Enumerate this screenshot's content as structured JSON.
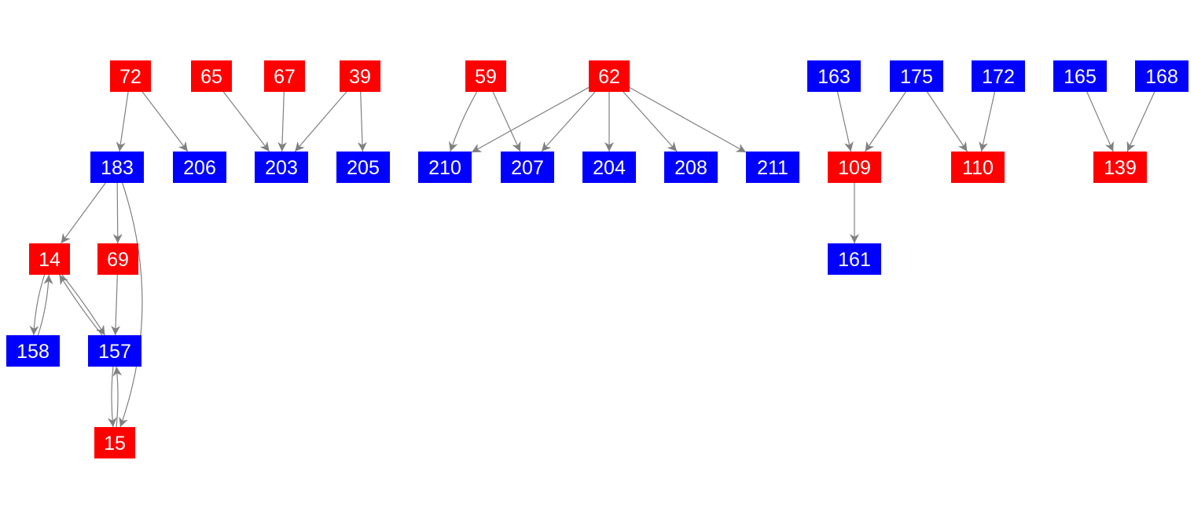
{
  "colors": {
    "red": "#ff0000",
    "blue": "#0000ff",
    "edge": "#808080"
  },
  "nodes": [
    {
      "id": "72",
      "color": "red"
    },
    {
      "id": "65",
      "color": "red"
    },
    {
      "id": "67",
      "color": "red"
    },
    {
      "id": "39",
      "color": "red"
    },
    {
      "id": "59",
      "color": "red"
    },
    {
      "id": "62",
      "color": "red"
    },
    {
      "id": "163",
      "color": "blue"
    },
    {
      "id": "175",
      "color": "blue"
    },
    {
      "id": "172",
      "color": "blue"
    },
    {
      "id": "165",
      "color": "blue"
    },
    {
      "id": "168",
      "color": "blue"
    },
    {
      "id": "183",
      "color": "blue"
    },
    {
      "id": "206",
      "color": "blue"
    },
    {
      "id": "203",
      "color": "blue"
    },
    {
      "id": "205",
      "color": "blue"
    },
    {
      "id": "210",
      "color": "blue"
    },
    {
      "id": "207",
      "color": "blue"
    },
    {
      "id": "204",
      "color": "blue"
    },
    {
      "id": "208",
      "color": "blue"
    },
    {
      "id": "211",
      "color": "blue"
    },
    {
      "id": "109",
      "color": "red"
    },
    {
      "id": "110",
      "color": "red"
    },
    {
      "id": "139",
      "color": "red"
    },
    {
      "id": "14",
      "color": "red"
    },
    {
      "id": "69",
      "color": "red"
    },
    {
      "id": "161",
      "color": "blue"
    },
    {
      "id": "158",
      "color": "blue"
    },
    {
      "id": "157",
      "color": "blue"
    },
    {
      "id": "15",
      "color": "red"
    }
  ],
  "edges": [
    [
      "72",
      "183"
    ],
    [
      "72",
      "206"
    ],
    [
      "65",
      "203"
    ],
    [
      "67",
      "203"
    ],
    [
      "39",
      "203"
    ],
    [
      "39",
      "205"
    ],
    [
      "59",
      "210"
    ],
    [
      "59",
      "207"
    ],
    [
      "62",
      "210"
    ],
    [
      "62",
      "207"
    ],
    [
      "62",
      "204"
    ],
    [
      "62",
      "208"
    ],
    [
      "62",
      "211"
    ],
    [
      "163",
      "109"
    ],
    [
      "175",
      "109"
    ],
    [
      "175",
      "110"
    ],
    [
      "172",
      "110"
    ],
    [
      "165",
      "139"
    ],
    [
      "168",
      "139"
    ],
    [
      "109",
      "161"
    ],
    [
      "183",
      "14"
    ],
    [
      "183",
      "69"
    ],
    [
      "183",
      "15"
    ],
    [
      "14",
      "158"
    ],
    [
      "158",
      "14"
    ],
    [
      "14",
      "157"
    ],
    [
      "157",
      "14"
    ],
    [
      "69",
      "157"
    ],
    [
      "157",
      "15"
    ],
    [
      "15",
      "157"
    ]
  ]
}
